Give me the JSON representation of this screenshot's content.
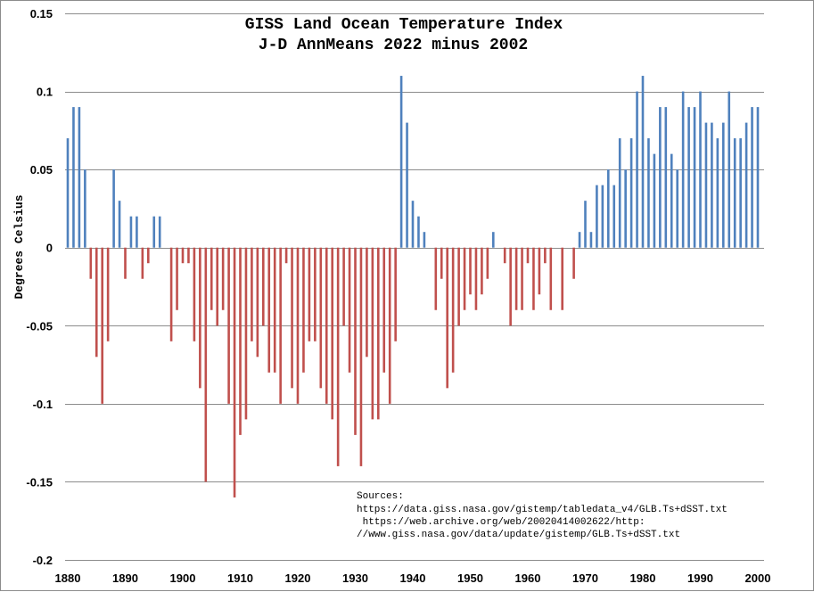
{
  "chart_data": {
    "type": "bar",
    "title": "GISS Land Ocean Temperature Index",
    "subtitle": "J-D AnnMeans 2022 minus 2002",
    "xlabel": "",
    "ylabel": "Degrees Celsius",
    "ylim": [
      -0.2,
      0.15
    ],
    "xlim": [
      1880,
      2000
    ],
    "yticks": [
      0.15,
      0.1,
      0.05,
      0,
      -0.05,
      -0.1,
      -0.15,
      -0.2
    ],
    "ytick_labels": [
      "0.15",
      "0.1",
      "0.05",
      "0",
      "-0.05",
      "-0.1",
      "-0.15",
      "-0.2"
    ],
    "xticks": [
      1880,
      1890,
      1900,
      1910,
      1920,
      1930,
      1940,
      1950,
      1960,
      1970,
      1980,
      1990,
      2000
    ],
    "grid": true,
    "positive_color": "#4f81bd",
    "negative_color": "#c0504d",
    "years": [
      1880,
      1881,
      1882,
      1883,
      1884,
      1885,
      1886,
      1887,
      1888,
      1889,
      1890,
      1891,
      1892,
      1893,
      1894,
      1895,
      1896,
      1897,
      1898,
      1899,
      1900,
      1901,
      1902,
      1903,
      1904,
      1905,
      1906,
      1907,
      1908,
      1909,
      1910,
      1911,
      1912,
      1913,
      1914,
      1915,
      1916,
      1917,
      1918,
      1919,
      1920,
      1921,
      1922,
      1923,
      1924,
      1925,
      1926,
      1927,
      1928,
      1929,
      1930,
      1931,
      1932,
      1933,
      1934,
      1935,
      1936,
      1937,
      1938,
      1939,
      1940,
      1941,
      1942,
      1943,
      1944,
      1945,
      1946,
      1947,
      1948,
      1949,
      1950,
      1951,
      1952,
      1953,
      1954,
      1955,
      1956,
      1957,
      1958,
      1959,
      1960,
      1961,
      1962,
      1963,
      1964,
      1965,
      1966,
      1967,
      1968,
      1969,
      1970,
      1971,
      1972,
      1973,
      1974,
      1975,
      1976,
      1977,
      1978,
      1979,
      1980,
      1981,
      1982,
      1983,
      1984,
      1985,
      1986,
      1987,
      1988,
      1989,
      1990,
      1991,
      1992,
      1993,
      1994,
      1995,
      1996,
      1997,
      1998,
      1999,
      2000
    ],
    "values": [
      0.07,
      0.09,
      0.09,
      0.05,
      -0.02,
      -0.07,
      -0.1,
      -0.06,
      0.05,
      0.03,
      -0.02,
      0.02,
      0.02,
      -0.02,
      -0.01,
      0.02,
      0.02,
      0,
      -0.06,
      -0.04,
      -0.01,
      -0.01,
      -0.06,
      -0.09,
      -0.15,
      -0.04,
      -0.05,
      -0.04,
      -0.1,
      -0.16,
      -0.12,
      -0.11,
      -0.06,
      -0.07,
      -0.05,
      -0.08,
      -0.08,
      -0.1,
      -0.01,
      -0.09,
      -0.1,
      -0.08,
      -0.06,
      -0.06,
      -0.09,
      -0.1,
      -0.11,
      -0.14,
      -0.05,
      -0.08,
      -0.12,
      -0.14,
      -0.07,
      -0.11,
      -0.11,
      -0.08,
      -0.1,
      -0.06,
      0.11,
      0.08,
      0.03,
      0.02,
      0.01,
      0,
      -0.04,
      -0.02,
      -0.09,
      -0.08,
      -0.05,
      -0.04,
      -0.03,
      -0.04,
      -0.03,
      -0.02,
      0.01,
      0,
      -0.01,
      -0.05,
      -0.04,
      -0.04,
      -0.01,
      -0.04,
      -0.03,
      -0.01,
      -0.04,
      0,
      -0.04,
      0,
      -0.02,
      0.01,
      0.03,
      0.01,
      0.04,
      0.04,
      0.05,
      0.04,
      0.07,
      0.05,
      0.07,
      0.1,
      0.11,
      0.07,
      0.06,
      0.09,
      0.09,
      0.06,
      0.05,
      0.1,
      0.09,
      0.09,
      0.1,
      0.08,
      0.08,
      0.07,
      0.08,
      0.1,
      0.07,
      0.07,
      0.08,
      0.09,
      0.09
    ],
    "annotation": {
      "heading": "Sources:",
      "lines": [
        "https://data.giss.nasa.gov/gistemp/tabledata_v4/GLB.Ts+dSST.txt",
        " https://web.archive.org/web/20020414002622/http:",
        "//www.giss.nasa.gov/data/update/gistemp/GLB.Ts+dSST.txt"
      ]
    }
  }
}
